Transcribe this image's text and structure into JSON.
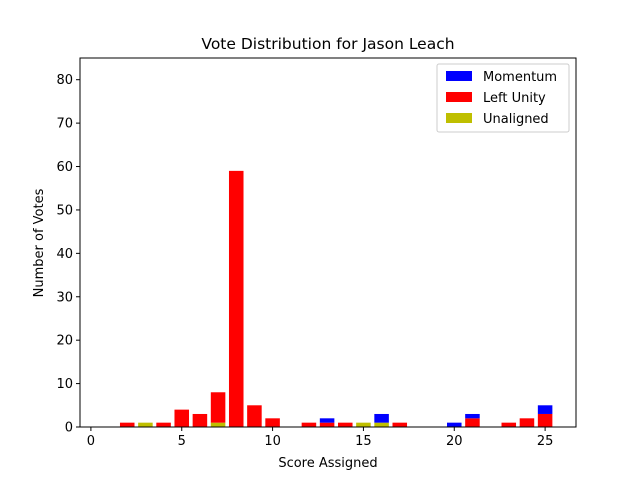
{
  "chart_data": {
    "type": "bar",
    "stacked": true,
    "title": "Vote Distribution for Jason Leach",
    "xlabel": "Score Assigned",
    "ylabel": "Number of Votes",
    "xlim": [
      -0.6,
      26.7
    ],
    "ylim": [
      0,
      85
    ],
    "xticks": [
      0,
      5,
      10,
      15,
      20,
      25
    ],
    "yticks": [
      0,
      10,
      20,
      30,
      40,
      50,
      60,
      70,
      80
    ],
    "grid": false,
    "legend_position": "top-right",
    "x": [
      0,
      1,
      2,
      3,
      4,
      5,
      6,
      7,
      8,
      9,
      10,
      11,
      12,
      13,
      14,
      15,
      16,
      17,
      18,
      19,
      20,
      21,
      22,
      23,
      24,
      25
    ],
    "stack_order": [
      "Unaligned",
      "Left Unity",
      "Momentum"
    ],
    "series": [
      {
        "name": "Momentum",
        "color": "#0000ff",
        "values": [
          0,
          0,
          0,
          0,
          0,
          0,
          0,
          0,
          0,
          0,
          0,
          0,
          0,
          1,
          0,
          0,
          2,
          0,
          0,
          0,
          1,
          1,
          0,
          0,
          0,
          2
        ]
      },
      {
        "name": "Left Unity",
        "color": "#ff0000",
        "values": [
          0,
          0,
          1,
          0,
          1,
          4,
          3,
          7,
          59,
          5,
          2,
          0,
          1,
          1,
          1,
          0,
          0,
          1,
          0,
          0,
          0,
          2,
          0,
          1,
          2,
          3
        ]
      },
      {
        "name": "Unaligned",
        "color": "#bfbf00",
        "values": [
          0,
          0,
          0,
          1,
          0,
          0,
          0,
          1,
          0,
          0,
          0,
          0,
          0,
          0,
          0,
          1,
          1,
          0,
          0,
          0,
          0,
          0,
          0,
          0,
          0,
          0
        ]
      }
    ]
  }
}
